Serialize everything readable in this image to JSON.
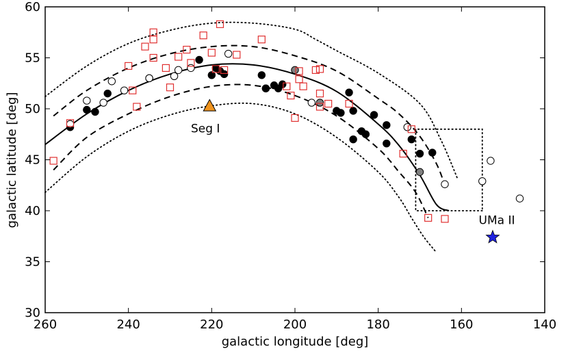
{
  "chart_data": {
    "type": "scatter",
    "title": "",
    "xlabel": "galactic longitude [deg]",
    "ylabel": "galactic latitude [deg]",
    "xlim": [
      260,
      140
    ],
    "ylim": [
      30,
      60
    ],
    "xticks": [
      260,
      240,
      220,
      200,
      180,
      160,
      140
    ],
    "yticks": [
      30,
      35,
      40,
      45,
      50,
      55,
      60
    ],
    "grid": false,
    "curves": [
      {
        "name": "center",
        "style": "solid",
        "x": [
          260,
          250,
          240,
          230,
          220,
          210,
          200,
          190,
          180,
          175,
          170,
          166,
          163
        ],
        "y": [
          46.5,
          49.5,
          51.8,
          53.4,
          54.3,
          54.3,
          53.4,
          51.7,
          48.5,
          46.4,
          43.5,
          40.6,
          40.0
        ]
      },
      {
        "name": "inner-upper",
        "style": "dashed",
        "x": [
          258,
          250,
          240,
          230,
          220,
          210,
          200,
          190,
          180,
          175,
          170,
          166,
          164
        ],
        "y": [
          49.3,
          51.8,
          54.0,
          55.4,
          56.1,
          56.1,
          55.2,
          53.7,
          51.0,
          49.5,
          47.3,
          44.6,
          42.5
        ]
      },
      {
        "name": "inner-lower",
        "style": "dashed",
        "x": [
          258,
          250,
          240,
          230,
          220,
          210,
          200,
          190,
          180,
          175,
          171,
          168
        ],
        "y": [
          44.0,
          47.2,
          49.5,
          51.2,
          52.2,
          52.3,
          51.3,
          49.3,
          46.1,
          43.8,
          41.8,
          39.3
        ]
      },
      {
        "name": "outer-upper",
        "style": "dotted",
        "x": [
          260,
          250,
          240,
          230,
          220,
          210,
          200,
          195,
          190,
          180,
          170,
          165,
          161
        ],
        "y": [
          51.2,
          54.2,
          56.4,
          57.7,
          58.4,
          58.4,
          57.8,
          56.8,
          55.7,
          53.5,
          50.5,
          47.0,
          43.2
        ]
      },
      {
        "name": "outer-lower",
        "style": "dotted",
        "x": [
          260,
          250,
          240,
          230,
          220,
          210,
          200,
          190,
          180,
          175,
          172,
          169,
          166
        ],
        "y": [
          41.8,
          45.3,
          47.8,
          49.4,
          50.3,
          50.5,
          49.5,
          47.2,
          43.8,
          41.3,
          39.3,
          37.4,
          35.9
        ]
      },
      {
        "name": "uma-ii-box",
        "style": "dotted",
        "x": [
          155,
          171,
          171,
          155,
          155
        ],
        "y": [
          40,
          40,
          48,
          48,
          40
        ]
      }
    ],
    "series": [
      {
        "name": "filled-black",
        "marker": "circle",
        "fill": "#000000",
        "stroke": "#000000",
        "x": [
          254,
          250,
          248,
          245,
          235,
          223,
          220,
          219,
          218,
          217,
          208,
          207,
          205,
          204,
          203,
          207,
          190,
          189,
          187,
          186,
          186,
          184,
          183,
          181,
          178,
          178,
          172,
          170,
          167
        ],
        "y": [
          48.2,
          49.9,
          49.7,
          51.5,
          53.0,
          54.8,
          53.3,
          54.0,
          53.7,
          53.4,
          53.3,
          52.0,
          52.3,
          52.0,
          52.4,
          52.0,
          49.8,
          49.6,
          51.6,
          49.8,
          47.0,
          47.8,
          47.5,
          49.4,
          48.4,
          46.6,
          47.0,
          45.6,
          45.7
        ]
      },
      {
        "name": "gray",
        "marker": "circle",
        "fill": "#808080",
        "stroke": "#000000",
        "x": [
          200,
          194,
          170
        ],
        "y": [
          53.8,
          50.6,
          43.8
        ]
      },
      {
        "name": "open-circle",
        "marker": "circle",
        "fill": "#ffffff",
        "stroke": "#000000",
        "x": [
          254,
          250,
          246,
          244,
          241,
          235,
          229,
          228,
          225,
          216,
          196,
          173,
          164,
          155,
          153,
          146
        ],
        "y": [
          48.5,
          50.8,
          50.6,
          52.7,
          51.8,
          53.0,
          53.2,
          53.8,
          54.0,
          55.4,
          50.6,
          48.2,
          42.6,
          42.9,
          44.9,
          41.2
        ]
      },
      {
        "name": "open-square",
        "marker": "square",
        "fill": "none",
        "stroke": "#e03030",
        "x": [
          258,
          254,
          240,
          239,
          238,
          236,
          234,
          234,
          234,
          231,
          230,
          228,
          226,
          225,
          222,
          220,
          219,
          218,
          217,
          214,
          208,
          202,
          201,
          200,
          199,
          199,
          198,
          195,
          194,
          194,
          194,
          192,
          187,
          174,
          172,
          168,
          164
        ],
        "y": [
          44.9,
          48.6,
          54.2,
          51.8,
          50.2,
          56.1,
          56.8,
          57.5,
          55.0,
          54.0,
          52.1,
          55.1,
          55.8,
          54.5,
          57.2,
          55.5,
          53.9,
          58.3,
          53.8,
          55.3,
          56.8,
          52.2,
          51.3,
          49.1,
          53.7,
          52.9,
          52.2,
          53.8,
          53.9,
          51.5,
          50.2,
          50.5,
          50.5,
          45.6,
          48.0,
          39.3,
          39.2
        ]
      }
    ],
    "markers": [
      {
        "name": "Seg I",
        "symbol": "triangle",
        "color": "#f0941e",
        "x": 220.5,
        "y": 50.3
      },
      {
        "name": "UMa II",
        "symbol": "star",
        "color": "#1f22e0",
        "x": 152.5,
        "y": 37.4
      }
    ],
    "annotations": [
      {
        "text": "Seg I",
        "x": 221.5,
        "y": 48.1
      },
      {
        "text": "UMa II",
        "x": 151.5,
        "y": 39.1
      }
    ]
  }
}
